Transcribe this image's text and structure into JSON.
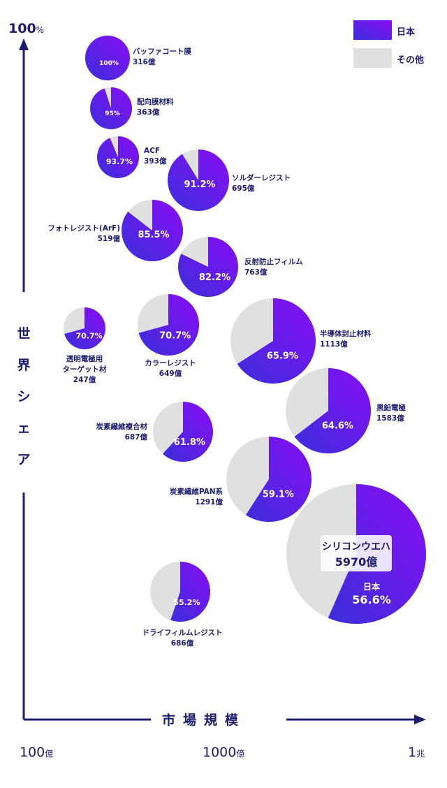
{
  "chart_data": {
    "type": "bubble-pie",
    "y_axis": {
      "title": "世界シェア",
      "top_label": "100",
      "top_unit": "%"
    },
    "x_axis": {
      "title": "市場規模",
      "ticks": [
        {
          "value": "100",
          "unit": "億"
        },
        {
          "value": "1000",
          "unit": "億"
        },
        {
          "value": "1",
          "unit": "兆"
        }
      ],
      "scale": "log"
    },
    "legend": [
      {
        "label": "日本",
        "color": "#6a1ef0"
      },
      {
        "label": "その他",
        "color": "#e0e0e0"
      }
    ],
    "items": [
      {
        "name": "バッファコート膜",
        "market": "316億",
        "share": 100,
        "share_label": "100%"
      },
      {
        "name": "配向膜材料",
        "market": "363億",
        "share": 95,
        "share_label": "95%"
      },
      {
        "name": "ACF",
        "market": "393億",
        "share": 93.7,
        "share_label": "93.7%"
      },
      {
        "name": "ソルダーレジスト",
        "market": "695億",
        "share": 91.2,
        "share_label": "91.2%"
      },
      {
        "name": "フォトレジスト(ArF)",
        "market": "519億",
        "share": 85.5,
        "share_label": "85.5%"
      },
      {
        "name": "反射防止フィルム",
        "market": "763億",
        "share": 82.2,
        "share_label": "82.2%"
      },
      {
        "name": "透明電極用\nターゲット材",
        "market": "247億",
        "share": 70.7,
        "share_label": "70.7%"
      },
      {
        "name": "カラーレジスト",
        "market": "649億",
        "share": 70.7,
        "share_label": "70.7%"
      },
      {
        "name": "半導体封止材料",
        "market": "1113億",
        "share": 65.9,
        "share_label": "65.9%"
      },
      {
        "name": "黒鉛電極",
        "market": "1583億",
        "share": 64.6,
        "share_label": "64.6%"
      },
      {
        "name": "炭素繊維複合材",
        "market": "687億",
        "share": 61.8,
        "share_label": "61.8%"
      },
      {
        "name": "炭素繊維PAN系",
        "market": "1291億",
        "share": 59.1,
        "share_label": "59.1%"
      },
      {
        "name": "シリコンウエハ",
        "market": "5970億",
        "share": 56.6,
        "share_label": "56.6%",
        "share_prefix": "日本"
      },
      {
        "name": "ドライフィルムレジスト",
        "market": "686億",
        "share": 55.2,
        "share_label": "55.2%"
      }
    ]
  }
}
